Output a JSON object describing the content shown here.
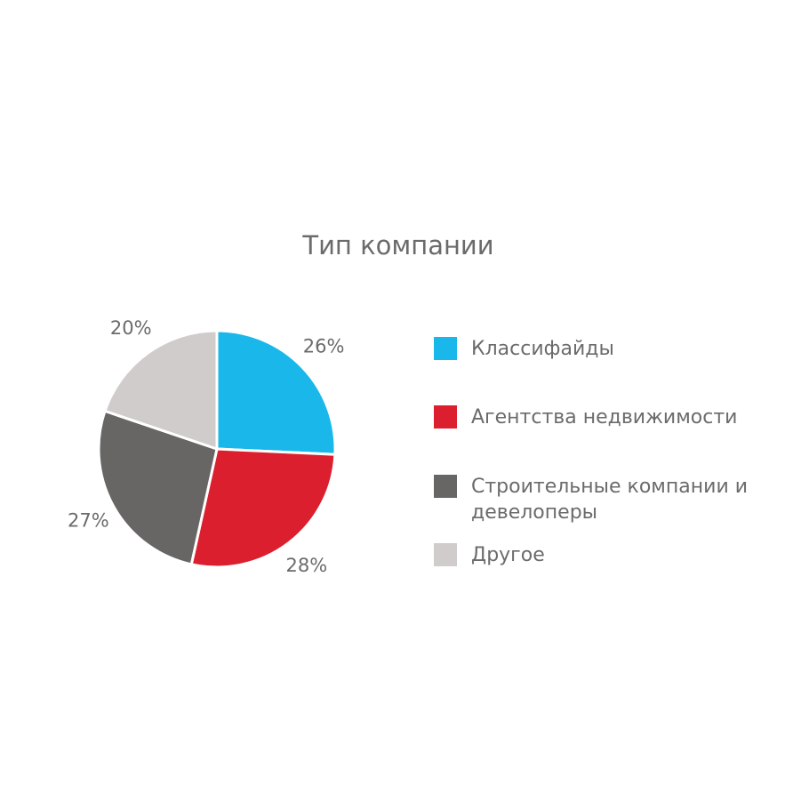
{
  "chart_data": {
    "type": "pie",
    "title": "Тип компании",
    "categories": [
      "Классифайды",
      "Агентства недвижимости",
      "Строительные компании и девелоперы",
      "Другое"
    ],
    "values": [
      26,
      28,
      27,
      20
    ],
    "value_labels": [
      "26%",
      "28%",
      "27%",
      "20%"
    ],
    "colors": [
      "#1ab8ea",
      "#dc1f2e",
      "#686664",
      "#d0cccb"
    ],
    "legend": "right"
  }
}
